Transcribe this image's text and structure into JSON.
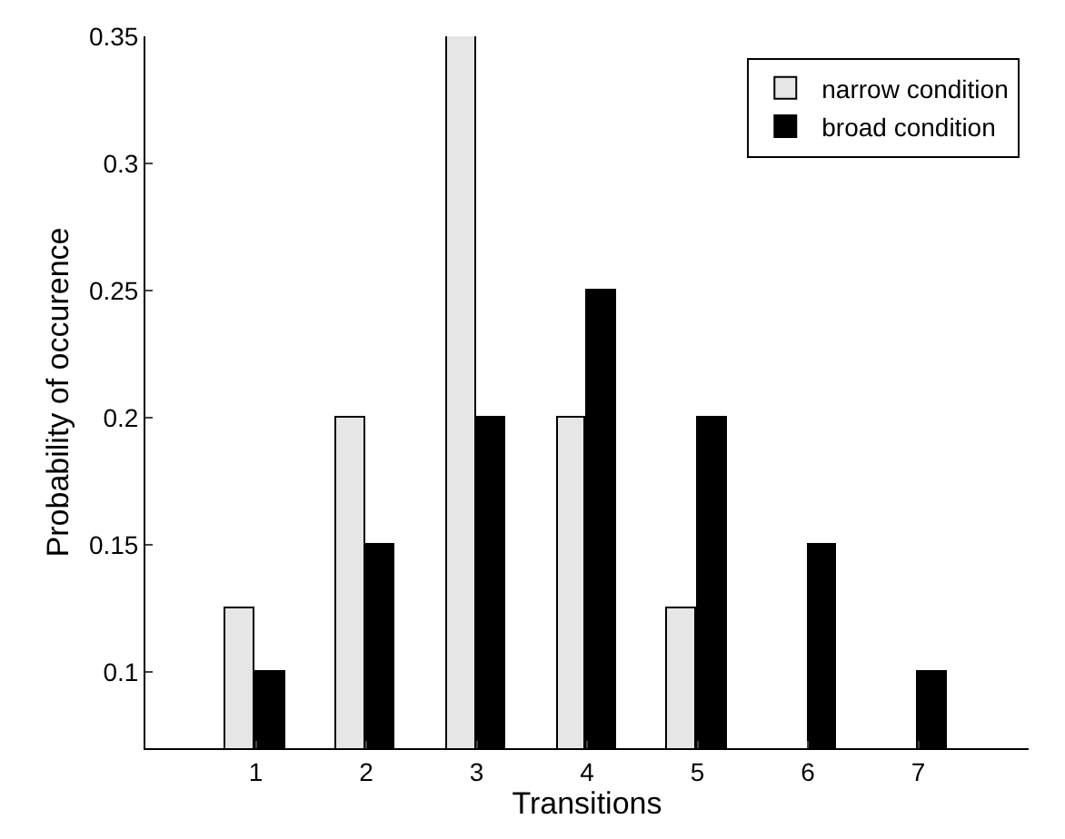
{
  "chart_data": {
    "type": "bar",
    "xlabel": "Transitions",
    "ylabel": "Probability of occurence",
    "x": [
      1,
      2,
      3,
      4,
      5,
      6,
      7
    ],
    "series": [
      {
        "name": "narrow condition",
        "color": "#e6e6e6",
        "values": [
          0.125,
          0.2,
          0.35,
          0.2,
          0.125,
          null,
          null
        ]
      },
      {
        "name": "broad condition",
        "color": "#000000",
        "values": [
          0.1,
          0.15,
          0.2,
          0.25,
          0.2,
          0.15,
          0.1
        ]
      }
    ],
    "xlim": [
      0,
      8
    ],
    "xticks": [
      1,
      2,
      3,
      4,
      5,
      6,
      7
    ],
    "ylim": [
      0.07,
      0.35
    ],
    "yticks": [
      0.1,
      0.15,
      0.2,
      0.25,
      0.3,
      0.35
    ],
    "grid": false,
    "legend": "top right"
  }
}
